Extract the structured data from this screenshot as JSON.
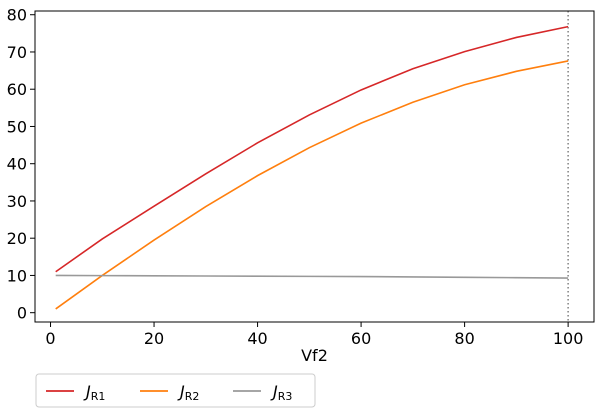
{
  "chart_data": {
    "type": "line",
    "title": "",
    "xlabel": "Vf2",
    "ylabel": "",
    "xlim": [
      -3,
      105
    ],
    "ylim": [
      -2.5,
      81
    ],
    "xticks": [
      0,
      20,
      40,
      60,
      80,
      100
    ],
    "yticks": [
      0,
      10,
      20,
      30,
      40,
      50,
      60,
      70,
      80
    ],
    "vline": {
      "x": 100,
      "style": "dotted",
      "color": "#808080"
    },
    "legend": {
      "placement": "bottom-left-outside",
      "columns": 3
    },
    "x": [
      1,
      10,
      20,
      30,
      40,
      50,
      60,
      70,
      80,
      90,
      100
    ],
    "series": [
      {
        "name": "J",
        "subscript": "R1",
        "color": "#d62728",
        "values": [
          11.0,
          19.8,
          28.6,
          37.3,
          45.6,
          53.1,
          59.8,
          65.5,
          70.1,
          73.9,
          76.8
        ]
      },
      {
        "name": "J",
        "subscript": "R2",
        "color": "#ff7f0e",
        "values": [
          1.0,
          10.0,
          19.5,
          28.5,
          36.8,
          44.3,
          50.9,
          56.5,
          61.2,
          64.8,
          67.6
        ]
      },
      {
        "name": "J",
        "subscript": "R3",
        "color": "#999999",
        "values": [
          10.0,
          9.95,
          9.9,
          9.85,
          9.8,
          9.75,
          9.7,
          9.6,
          9.5,
          9.4,
          9.3
        ]
      }
    ]
  }
}
